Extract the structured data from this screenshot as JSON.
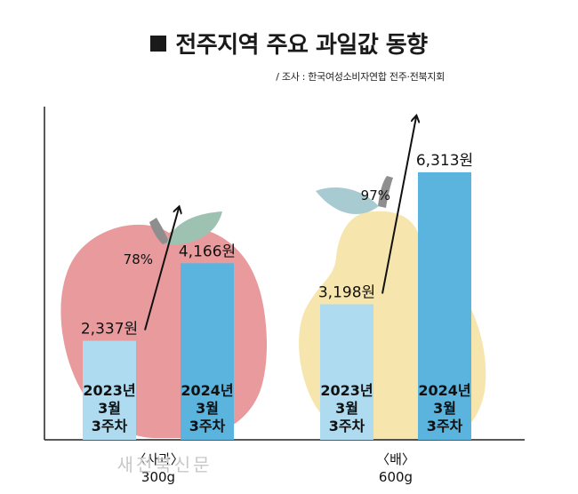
{
  "title": "전주지역 주요 과일값 동향",
  "source": "/ 조사 : 한국여성소비자연합 전주·전북지회",
  "watermark": "새전북신문",
  "colors": {
    "bar_2023": "#aedbf0",
    "bar_2024": "#5ab4de",
    "apple": "#e89a9d",
    "pear": "#f6e6ad",
    "leaf": "#9ec2b1",
    "pear_leaf": "#a8cbd1",
    "axis": "#222222"
  },
  "chart_data": {
    "type": "bar",
    "title": "전주지역 주요 과일값 동향",
    "groups": [
      {
        "name": "사과",
        "category_label": "〈사과〉",
        "unit_label": "300g",
        "bars": [
          {
            "period": [
              "2023년",
              "3월",
              "3주차"
            ],
            "value": 2337,
            "value_label": "2,337원"
          },
          {
            "period": [
              "2024년",
              "3월",
              "3주차"
            ],
            "value": 4166,
            "value_label": "4,166원"
          }
        ],
        "change_label": "78%"
      },
      {
        "name": "배",
        "category_label": "〈배〉",
        "unit_label": "600g",
        "bars": [
          {
            "period": [
              "2023년",
              "3월",
              "3주차"
            ],
            "value": 3198,
            "value_label": "3,198원"
          },
          {
            "period": [
              "2024년",
              "3월",
              "3주차"
            ],
            "value": 6313,
            "value_label": "6,313원"
          }
        ],
        "change_label": "97%"
      }
    ]
  }
}
